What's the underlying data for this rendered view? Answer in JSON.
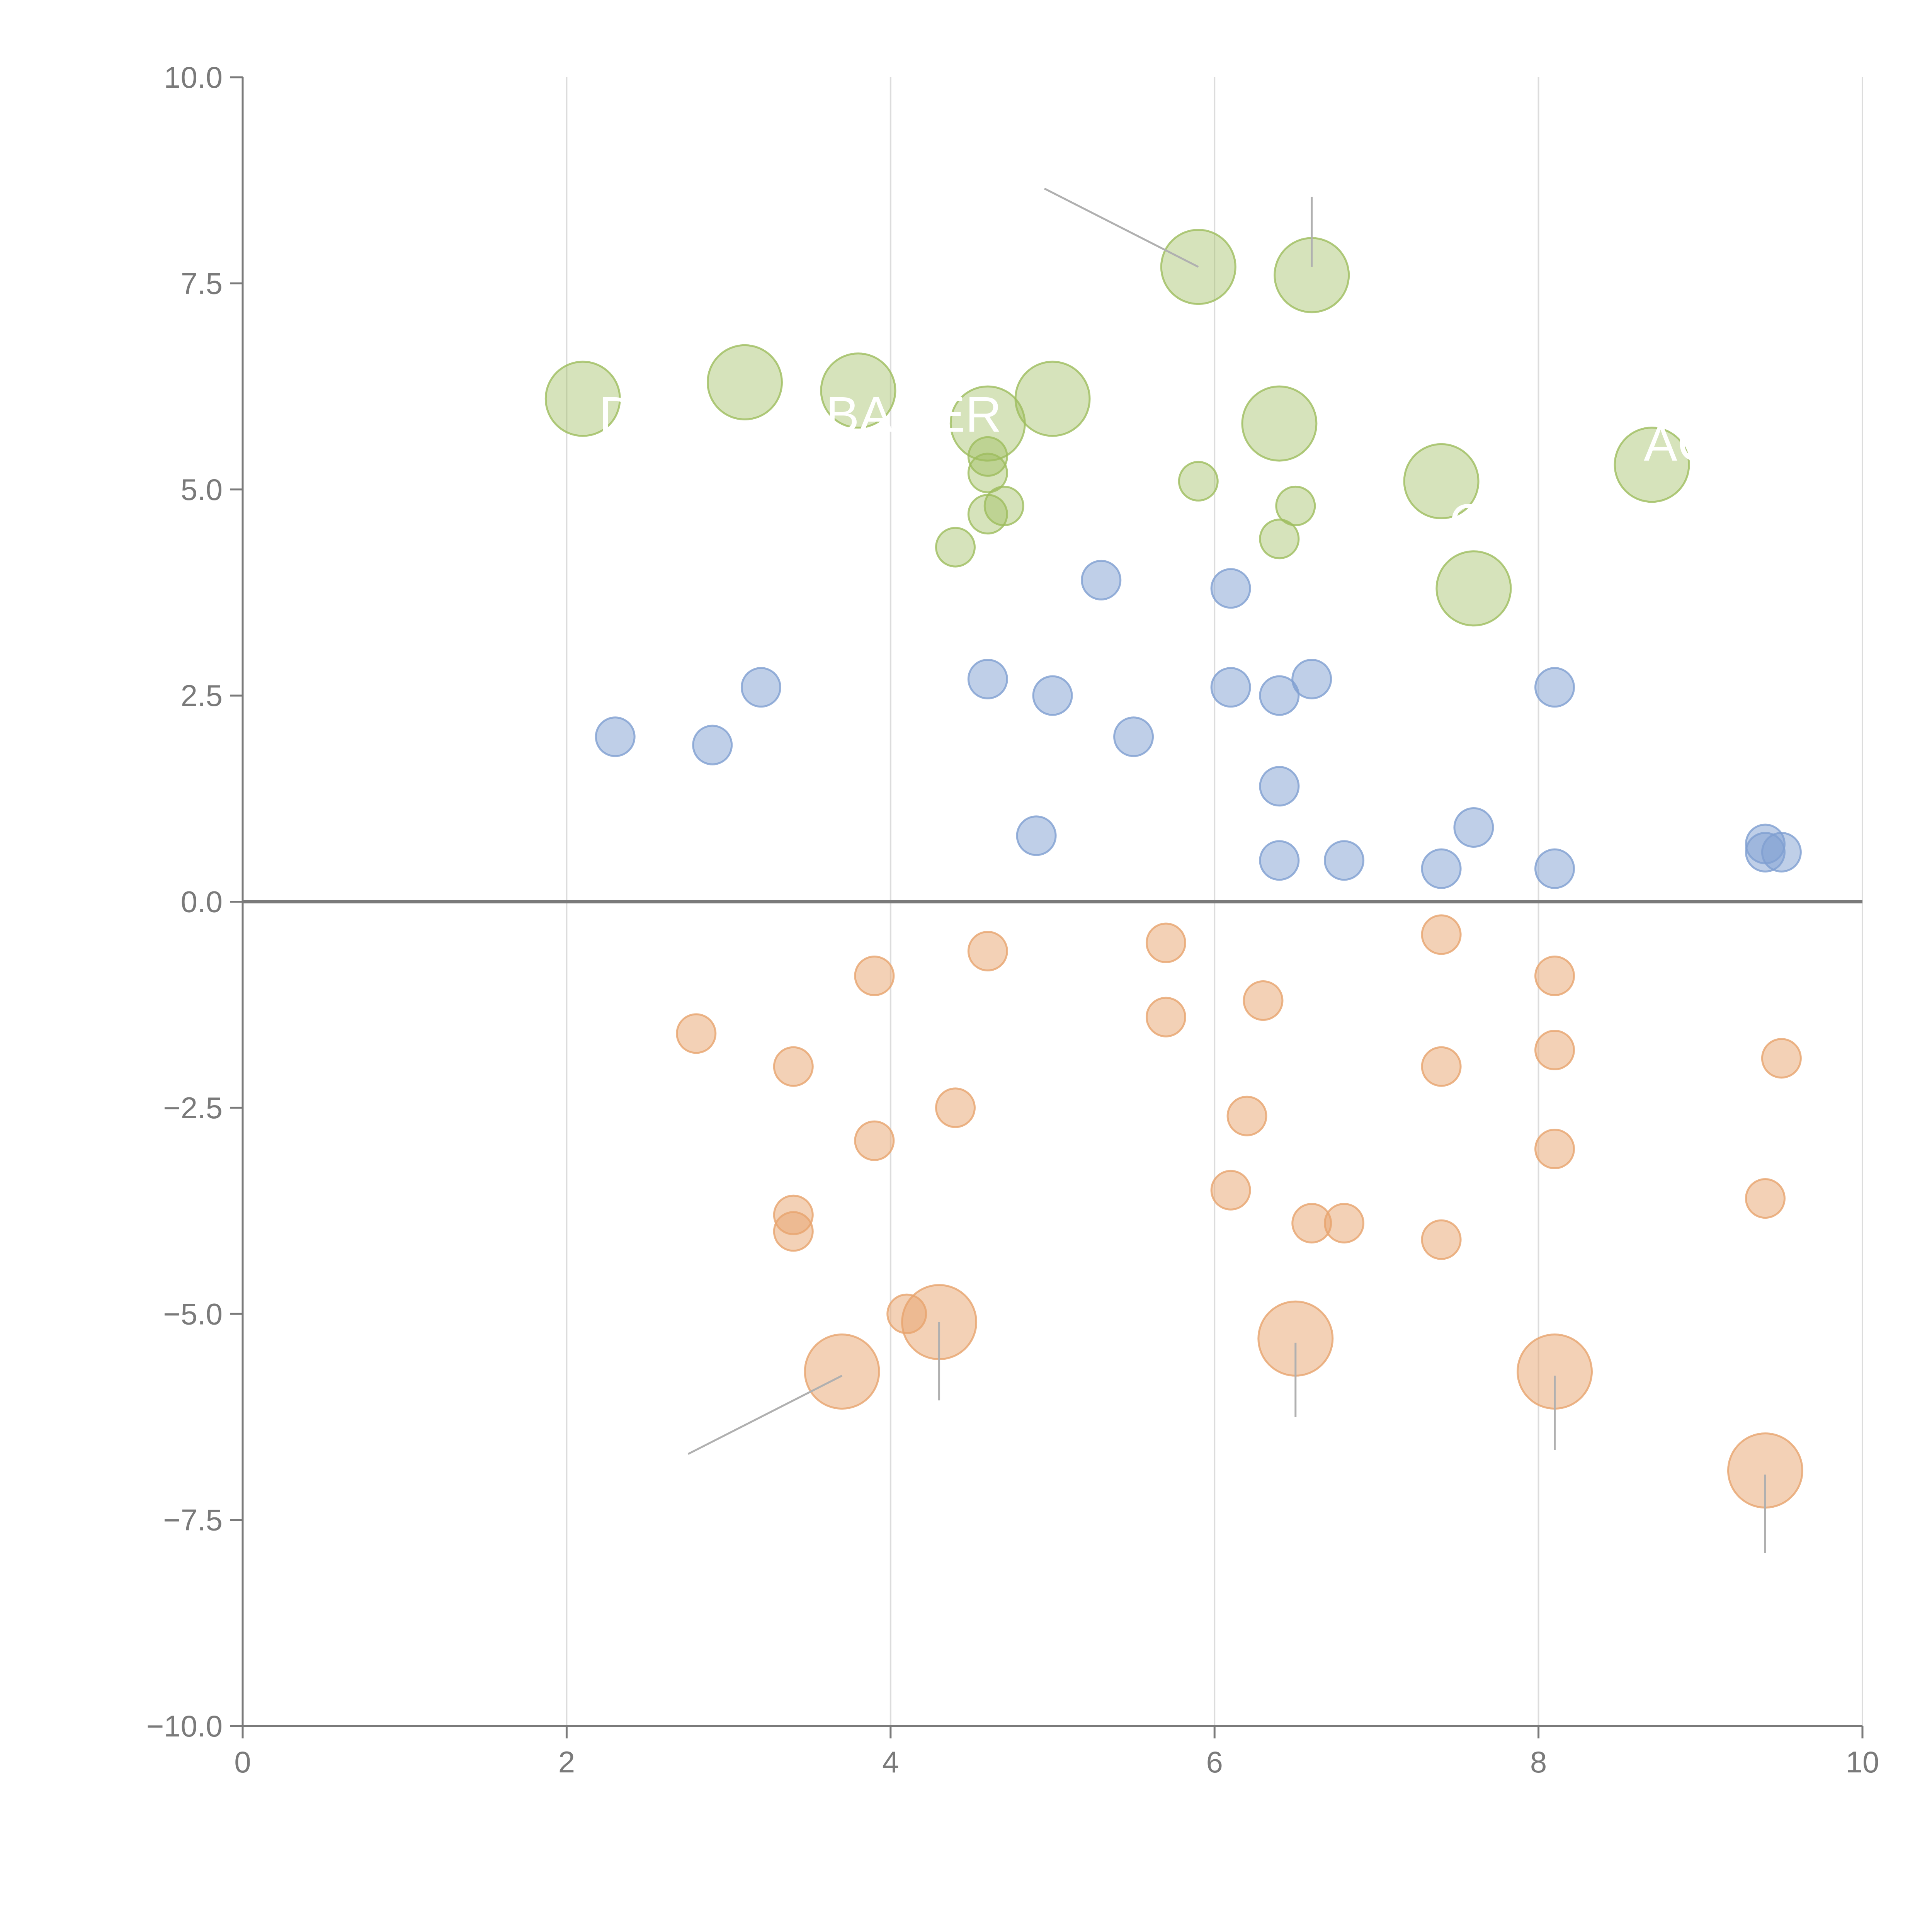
{
  "chart_data": {
    "type": "scatter",
    "title": "",
    "xlabel": "",
    "ylabel": "",
    "xlim": [
      0,
      10
    ],
    "ylim": [
      -10,
      10
    ],
    "x_ticks": [
      0,
      2,
      4,
      6,
      8,
      10
    ],
    "y_ticks": [
      10,
      7.5,
      5,
      2.5,
      0,
      -2.5,
      -5,
      -7.5,
      -10
    ],
    "x_tick_labels": [
      "0",
      "2",
      "4",
      "6",
      "8",
      "10"
    ],
    "y_tick_labels": [
      "10.0",
      "7.5",
      "5.0",
      "2.5",
      "0.0",
      "−2.5",
      "−5.0",
      "−7.5",
      "−10.0"
    ],
    "vertical_grid": true,
    "reference_line_y": 0,
    "series": [
      {
        "name": "green",
        "color": "#9ebd5e",
        "points": [
          {
            "x": 2.1,
            "y": 6.1,
            "size": 3
          },
          {
            "x": 3.1,
            "y": 6.3,
            "size": 3
          },
          {
            "x": 3.8,
            "y": 6.2,
            "size": 3
          },
          {
            "x": 4.6,
            "y": 5.8,
            "size": 3
          },
          {
            "x": 5.0,
            "y": 6.1,
            "size": 3
          },
          {
            "x": 5.9,
            "y": 7.7,
            "size": 3
          },
          {
            "x": 6.6,
            "y": 7.6,
            "size": 3
          },
          {
            "x": 6.4,
            "y": 5.8,
            "size": 3
          },
          {
            "x": 7.4,
            "y": 5.1,
            "size": 3
          },
          {
            "x": 8.7,
            "y": 5.3,
            "size": 3
          },
          {
            "x": 7.6,
            "y": 3.8,
            "size": 3
          },
          {
            "x": 4.6,
            "y": 5.4,
            "size": 1
          },
          {
            "x": 4.6,
            "y": 5.2,
            "size": 1
          },
          {
            "x": 5.9,
            "y": 5.1,
            "size": 1
          },
          {
            "x": 6.5,
            "y": 4.8,
            "size": 1
          },
          {
            "x": 6.4,
            "y": 4.4,
            "size": 1
          },
          {
            "x": 4.6,
            "y": 4.7,
            "size": 1
          },
          {
            "x": 4.7,
            "y": 4.8,
            "size": 1
          },
          {
            "x": 4.4,
            "y": 4.3,
            "size": 1
          }
        ]
      },
      {
        "name": "blue",
        "color": "#7f9fd1",
        "points": [
          {
            "x": 2.3,
            "y": 2.0,
            "size": 1
          },
          {
            "x": 2.9,
            "y": 1.9,
            "size": 1
          },
          {
            "x": 3.2,
            "y": 2.6,
            "size": 1
          },
          {
            "x": 4.6,
            "y": 2.7,
            "size": 1
          },
          {
            "x": 5.0,
            "y": 2.5,
            "size": 1
          },
          {
            "x": 5.3,
            "y": 3.9,
            "size": 1
          },
          {
            "x": 5.5,
            "y": 2.0,
            "size": 1
          },
          {
            "x": 4.9,
            "y": 0.8,
            "size": 1
          },
          {
            "x": 6.1,
            "y": 3.8,
            "size": 1
          },
          {
            "x": 6.1,
            "y": 2.6,
            "size": 1
          },
          {
            "x": 6.4,
            "y": 2.5,
            "size": 1
          },
          {
            "x": 6.6,
            "y": 2.7,
            "size": 1
          },
          {
            "x": 6.4,
            "y": 1.4,
            "size": 1
          },
          {
            "x": 6.4,
            "y": 0.5,
            "size": 1
          },
          {
            "x": 6.8,
            "y": 0.5,
            "size": 1
          },
          {
            "x": 7.4,
            "y": 0.4,
            "size": 1
          },
          {
            "x": 7.6,
            "y": 0.9,
            "size": 1
          },
          {
            "x": 8.1,
            "y": 2.6,
            "size": 1
          },
          {
            "x": 8.1,
            "y": 0.4,
            "size": 1
          },
          {
            "x": 9.4,
            "y": 0.7,
            "size": 1
          },
          {
            "x": 9.4,
            "y": 0.6,
            "size": 1
          },
          {
            "x": 9.5,
            "y": 0.6,
            "size": 1
          }
        ]
      },
      {
        "name": "orange",
        "color": "#e7a46e",
        "points": [
          {
            "x": 2.8,
            "y": -1.6,
            "size": 1
          },
          {
            "x": 3.4,
            "y": -2.0,
            "size": 1
          },
          {
            "x": 3.9,
            "y": -0.9,
            "size": 1
          },
          {
            "x": 3.9,
            "y": -2.9,
            "size": 1
          },
          {
            "x": 3.4,
            "y": -3.8,
            "size": 1
          },
          {
            "x": 3.4,
            "y": -4.0,
            "size": 1
          },
          {
            "x": 4.6,
            "y": -0.6,
            "size": 1
          },
          {
            "x": 4.4,
            "y": -2.5,
            "size": 1
          },
          {
            "x": 4.1,
            "y": -5.0,
            "size": 1
          },
          {
            "x": 5.7,
            "y": -0.5,
            "size": 1
          },
          {
            "x": 5.7,
            "y": -1.4,
            "size": 1
          },
          {
            "x": 6.3,
            "y": -1.2,
            "size": 1
          },
          {
            "x": 6.2,
            "y": -2.6,
            "size": 1
          },
          {
            "x": 6.1,
            "y": -3.5,
            "size": 1
          },
          {
            "x": 6.6,
            "y": -3.9,
            "size": 1
          },
          {
            "x": 6.8,
            "y": -3.9,
            "size": 1
          },
          {
            "x": 7.4,
            "y": -0.4,
            "size": 1
          },
          {
            "x": 7.4,
            "y": -2.0,
            "size": 1
          },
          {
            "x": 7.4,
            "y": -4.1,
            "size": 1
          },
          {
            "x": 8.1,
            "y": -0.9,
            "size": 1
          },
          {
            "x": 8.1,
            "y": -1.8,
            "size": 1
          },
          {
            "x": 8.1,
            "y": -3.0,
            "size": 1
          },
          {
            "x": 9.4,
            "y": -3.6,
            "size": 1
          },
          {
            "x": 9.5,
            "y": -1.9,
            "size": 1
          },
          {
            "x": 3.7,
            "y": -5.7,
            "size": 3
          },
          {
            "x": 4.3,
            "y": -5.1,
            "size": 3
          },
          {
            "x": 6.5,
            "y": -5.3,
            "size": 3
          },
          {
            "x": 8.1,
            "y": -5.7,
            "size": 3
          },
          {
            "x": 9.4,
            "y": -6.9,
            "size": 3
          }
        ]
      }
    ],
    "leader_lines": [
      {
        "from": [
          4.95,
          8.65
        ],
        "to": [
          5.9,
          7.7
        ]
      },
      {
        "from": [
          6.6,
          8.55
        ],
        "to": [
          6.6,
          7.7
        ]
      },
      {
        "from": [
          2.75,
          -6.7
        ],
        "to": [
          3.7,
          -5.75
        ]
      },
      {
        "from": [
          4.3,
          -5.1
        ],
        "to": [
          4.3,
          -6.05
        ]
      },
      {
        "from": [
          6.5,
          -5.35
        ],
        "to": [
          6.5,
          -6.25
        ]
      },
      {
        "from": [
          8.1,
          -5.75
        ],
        "to": [
          8.1,
          -6.65
        ]
      },
      {
        "from": [
          9.4,
          -6.95
        ],
        "to": [
          9.4,
          -7.9
        ]
      }
    ],
    "annotations": [
      {
        "text": "D",
        "x": 2.2,
        "y": 5.7
      },
      {
        "text": "BAGER",
        "x": 3.6,
        "y": 5.7
      },
      {
        "text": "O",
        "x": 7.45,
        "y": 4.4
      },
      {
        "text": "AC",
        "x": 8.65,
        "y": 5.35
      }
    ]
  }
}
